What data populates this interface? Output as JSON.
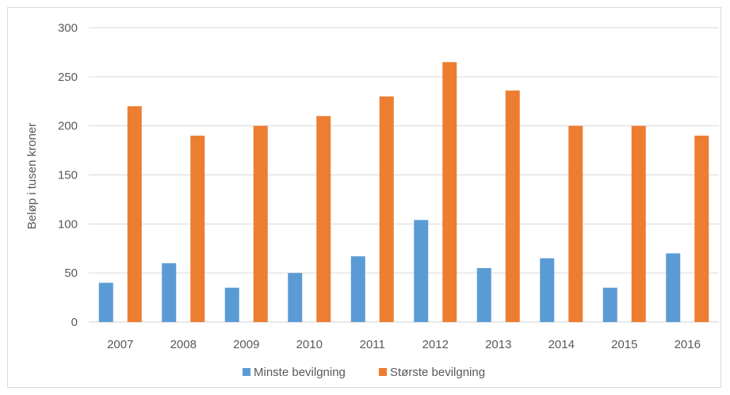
{
  "chart_data": {
    "type": "bar",
    "title": "",
    "xlabel": "",
    "ylabel": "Beløp i tusen kroner",
    "ylim": [
      0,
      300
    ],
    "yticks": [
      0,
      50,
      100,
      150,
      200,
      250,
      300
    ],
    "grid": true,
    "legend_position": "bottom",
    "categories": [
      "2007",
      "2008",
      "2009",
      "2010",
      "2011",
      "2012",
      "2013",
      "2014",
      "2015",
      "2016"
    ],
    "series": [
      {
        "name": "Minste bevilgning",
        "color": "#5B9BD5",
        "values": [
          40,
          60,
          35,
          50,
          67,
          104,
          55,
          65,
          35,
          70
        ]
      },
      {
        "name": "Største bevilgning",
        "color": "#ED7D31",
        "values": [
          220,
          190,
          200,
          210,
          230,
          265,
          236,
          200,
          200,
          190
        ]
      }
    ]
  }
}
